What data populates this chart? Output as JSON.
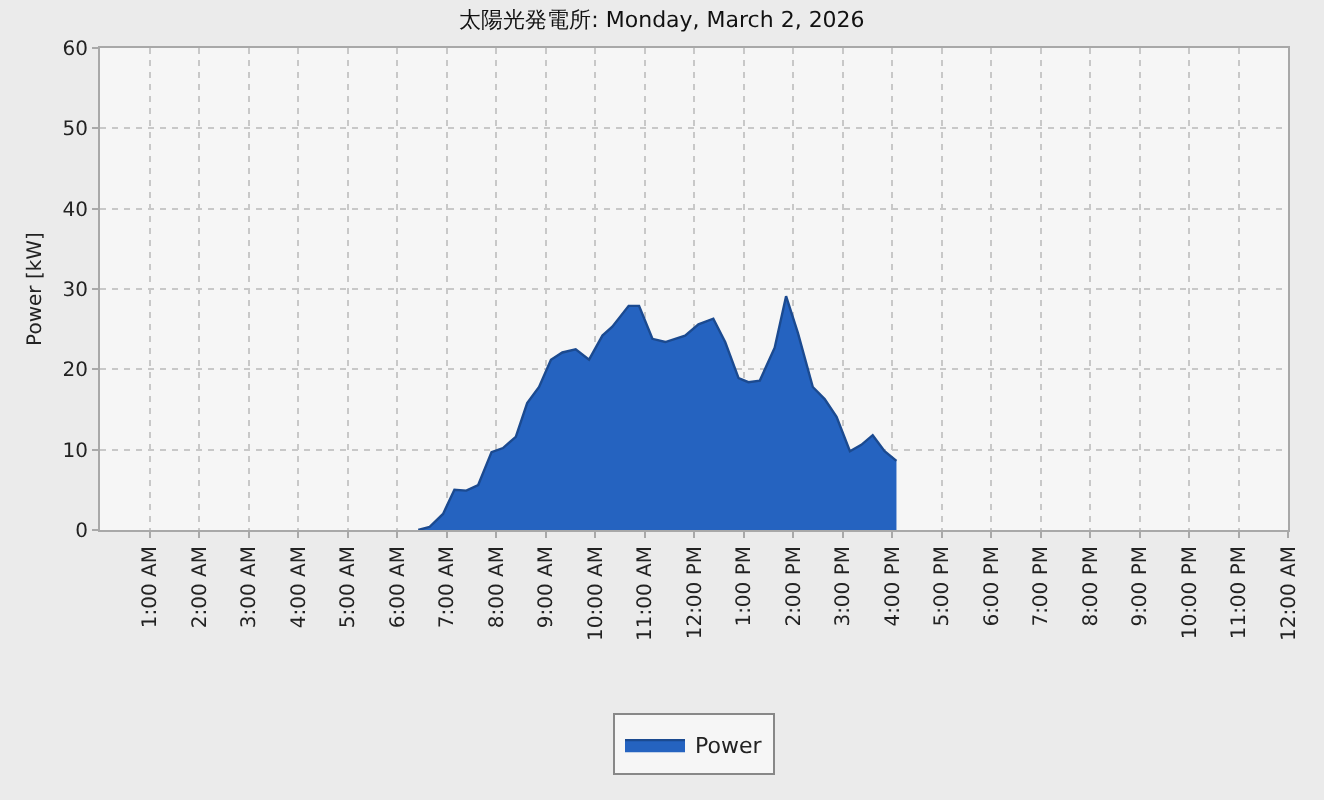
{
  "chart_data": {
    "type": "area",
    "title": "太陽光発電所: Monday, March 2, 2026",
    "ylabel": "Power [kW]",
    "series": [
      {
        "name": "Power",
        "color": "#2563c0",
        "x": [
          6.43,
          6.66,
          6.93,
          7.16,
          7.4,
          7.64,
          7.91,
          8.14,
          8.4,
          8.63,
          8.87,
          9.11,
          9.34,
          9.61,
          9.88,
          10.15,
          10.35,
          10.68,
          10.89,
          11.16,
          11.42,
          11.82,
          12.09,
          12.39,
          12.63,
          12.9,
          13.1,
          13.33,
          13.63,
          13.86,
          14.1,
          14.4,
          14.64,
          14.88,
          15.15,
          15.38,
          15.61,
          15.85,
          16.09
        ],
        "values": [
          0,
          0.4,
          2.0,
          5.0,
          4.9,
          5.6,
          9.7,
          10.2,
          11.6,
          15.8,
          17.8,
          21.2,
          22.1,
          22.5,
          21.2,
          24.2,
          25.3,
          27.9,
          27.9,
          23.8,
          23.4,
          24.2,
          25.6,
          26.3,
          23.4,
          18.9,
          18.4,
          18.6,
          22.7,
          29.1,
          24.5,
          17.8,
          16.3,
          14.1,
          9.8,
          10.6,
          11.8,
          9.8,
          8.6
        ]
      }
    ],
    "xlim": [
      0,
      24
    ],
    "xticks": [
      {
        "value": 1,
        "label": "1:00 AM"
      },
      {
        "value": 2,
        "label": "2:00 AM"
      },
      {
        "value": 3,
        "label": "3:00 AM"
      },
      {
        "value": 4,
        "label": "4:00 AM"
      },
      {
        "value": 5,
        "label": "5:00 AM"
      },
      {
        "value": 6,
        "label": "6:00 AM"
      },
      {
        "value": 7,
        "label": "7:00 AM"
      },
      {
        "value": 8,
        "label": "8:00 AM"
      },
      {
        "value": 9,
        "label": "9:00 AM"
      },
      {
        "value": 10,
        "label": "10:00 AM"
      },
      {
        "value": 11,
        "label": "11:00 AM"
      },
      {
        "value": 12,
        "label": "12:00 PM"
      },
      {
        "value": 13,
        "label": "1:00 PM"
      },
      {
        "value": 14,
        "label": "2:00 PM"
      },
      {
        "value": 15,
        "label": "3:00 PM"
      },
      {
        "value": 16,
        "label": "4:00 PM"
      },
      {
        "value": 17,
        "label": "5:00 PM"
      },
      {
        "value": 18,
        "label": "6:00 PM"
      },
      {
        "value": 19,
        "label": "7:00 PM"
      },
      {
        "value": 20,
        "label": "8:00 PM"
      },
      {
        "value": 21,
        "label": "9:00 PM"
      },
      {
        "value": 22,
        "label": "10:00 PM"
      },
      {
        "value": 23,
        "label": "11:00 PM"
      },
      {
        "value": 24,
        "label": "12:00 AM"
      }
    ],
    "ylim": [
      0,
      60
    ],
    "yticks": [
      0,
      10,
      20,
      30,
      40,
      50,
      60
    ],
    "grid": true,
    "legend": "bottom",
    "marker": "none"
  }
}
